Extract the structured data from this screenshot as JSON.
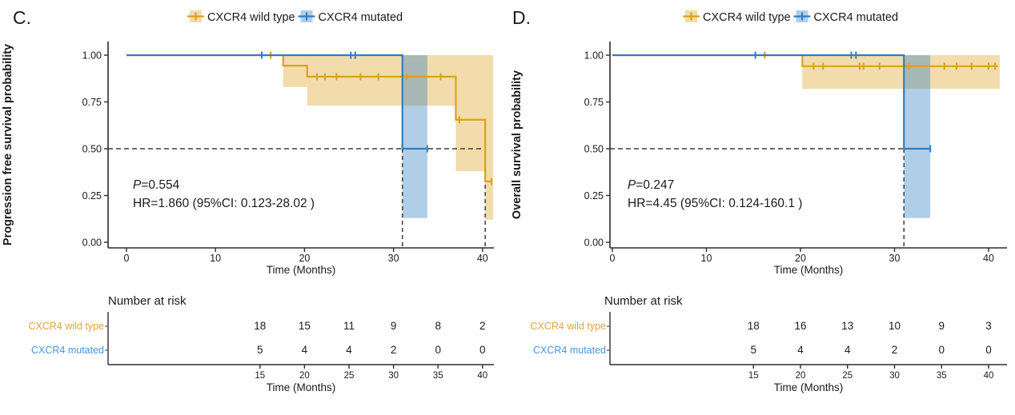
{
  "figure": {
    "background": "#ffffff",
    "text_color": "#1b1b1b"
  },
  "chart_data": [
    {
      "type": "line",
      "subtype": "kaplan-meier-step",
      "panel_label": "C.",
      "ylabel": "Progression free survival probability",
      "xlabel": "Time (Months)",
      "xticks": [
        0,
        10,
        20,
        30,
        40
      ],
      "ytick_values": [
        0,
        0.25,
        0.5,
        0.75,
        1
      ],
      "ytick_labels": [
        "0.00",
        "0.25",
        "0.50",
        "0.75",
        "1.00"
      ],
      "xlim": [
        0,
        41.5
      ],
      "ylim": [
        0,
        1
      ],
      "legend": [
        {
          "label": "CXCR4 wild type",
          "color": "#DDA019",
          "band_color": "rgba(224,164,38,0.38)"
        },
        {
          "label": "CXCR4 mutated",
          "color": "#2F7EC3",
          "band_color": "rgba(47,126,195,0.38)"
        }
      ],
      "annotation": {
        "p_label": "P",
        "p_value": "=0.554",
        "hr": "HR=1.860 (95%CI: 0.123-28.02 )"
      },
      "median_guides": {
        "h_y": 0.5,
        "h_x_end": 40.3,
        "v_x": [
          31,
          40.3
        ]
      },
      "series": [
        {
          "name": "CXCR4 wild type",
          "color": "#DDA019",
          "band_color": "rgba(224,164,38,0.38)",
          "steps": [
            [
              0,
              1
            ],
            [
              17.6,
              1
            ],
            [
              17.6,
              0.944
            ],
            [
              20.3,
              0.944
            ],
            [
              20.3,
              0.885
            ],
            [
              37,
              0.885
            ],
            [
              37,
              0.655
            ],
            [
              40.3,
              0.655
            ],
            [
              40.3,
              0.325
            ],
            [
              41,
              0.325
            ]
          ],
          "censors": [
            [
              16.2,
              1
            ],
            [
              21.4,
              0.885
            ],
            [
              22.3,
              0.885
            ],
            [
              23.6,
              0.885
            ],
            [
              26.3,
              0.885
            ],
            [
              28.3,
              0.885
            ],
            [
              31.5,
              0.885
            ],
            [
              35.3,
              0.885
            ],
            [
              37.4,
              0.655
            ],
            [
              41,
              0.325
            ]
          ],
          "ci": {
            "upper": 1.0,
            "lower": [
              [
                17.6,
                0.83
              ],
              [
                20.3,
                0.73
              ],
              [
                37,
                0.38
              ],
              [
                40.3,
                0.12
              ]
            ],
            "x_end": 41.2
          }
        },
        {
          "name": "CXCR4 mutated",
          "color": "#2F7EC3",
          "band_color": "rgba(47,126,195,0.38)",
          "steps": [
            [
              0,
              1
            ],
            [
              31,
              1
            ],
            [
              31,
              0.5
            ],
            [
              33.8,
              0.5
            ]
          ],
          "censors": [
            [
              15.2,
              1
            ],
            [
              25.2,
              1
            ],
            [
              25.7,
              1
            ],
            [
              33.8,
              0.5
            ]
          ],
          "ci": {
            "upper": 1.0,
            "lower": [
              [
                31,
                0.13
              ]
            ],
            "x_end": 33.8
          }
        }
      ],
      "risk_table": {
        "title": "Number at risk",
        "xlabel": "Time (Months)",
        "times": [
          15,
          20,
          25,
          30,
          35,
          40
        ],
        "rows": [
          {
            "name": "CXCR4 wild type",
            "color": "#E2A33D",
            "values": [
              18,
              15,
              11,
              9,
              8,
              2
            ]
          },
          {
            "name": "CXCR4 mutated",
            "color": "#4B94DC",
            "values": [
              5,
              4,
              4,
              2,
              0,
              0
            ]
          }
        ]
      }
    },
    {
      "type": "line",
      "subtype": "kaplan-meier-step",
      "panel_label": "D.",
      "ylabel": "Overall survival probability",
      "xlabel": "Time (Months)",
      "xticks": [
        0,
        10,
        20,
        30,
        40
      ],
      "ytick_values": [
        0,
        0.25,
        0.5,
        0.75,
        1
      ],
      "ytick_labels": [
        "0.00",
        "0.25",
        "0.50",
        "0.75",
        "1.00"
      ],
      "xlim": [
        0,
        41.5
      ],
      "ylim": [
        0,
        1
      ],
      "legend": [
        {
          "label": "CXCR4 wild type",
          "color": "#DDA019",
          "band_color": "rgba(224,164,38,0.38)"
        },
        {
          "label": "CXCR4 mutated",
          "color": "#2F7EC3",
          "band_color": "rgba(47,126,195,0.38)"
        }
      ],
      "annotation": {
        "p_label": "P",
        "p_value": "=0.247",
        "hr": "HR=4.45 (95%CI: 0.124-160.1 )"
      },
      "median_guides": {
        "h_y": 0.5,
        "h_x_end": 31,
        "v_x": [
          31
        ]
      },
      "series": [
        {
          "name": "CXCR4 wild type",
          "color": "#DDA019",
          "band_color": "rgba(224,164,38,0.38)",
          "steps": [
            [
              0,
              1
            ],
            [
              20.2,
              1
            ],
            [
              20.2,
              0.941
            ],
            [
              41,
              0.941
            ]
          ],
          "censors": [
            [
              16.2,
              1
            ],
            [
              21.4,
              0.941
            ],
            [
              22.4,
              0.941
            ],
            [
              26.3,
              0.941
            ],
            [
              26.7,
              0.941
            ],
            [
              28.4,
              0.941
            ],
            [
              31.5,
              0.941
            ],
            [
              35.3,
              0.941
            ],
            [
              36.6,
              0.941
            ],
            [
              38.2,
              0.941
            ],
            [
              40,
              0.941
            ],
            [
              40.7,
              0.941
            ]
          ],
          "ci": {
            "upper": 1.0,
            "lower": [
              [
                20.2,
                0.82
              ]
            ],
            "x_end": 41.2
          }
        },
        {
          "name": "CXCR4 mutated",
          "color": "#2F7EC3",
          "band_color": "rgba(47,126,195,0.38)",
          "steps": [
            [
              0,
              1
            ],
            [
              31,
              1
            ],
            [
              31,
              0.5
            ],
            [
              33.8,
              0.5
            ]
          ],
          "censors": [
            [
              15.2,
              1
            ],
            [
              25.4,
              1
            ],
            [
              25.9,
              1
            ],
            [
              33.8,
              0.5
            ]
          ],
          "ci": {
            "upper": 1.0,
            "lower": [
              [
                31,
                0.13
              ]
            ],
            "x_end": 33.8
          }
        }
      ],
      "risk_table": {
        "title": "Number at risk",
        "xlabel": "Time (Months)",
        "times": [
          15,
          20,
          25,
          30,
          35,
          40
        ],
        "rows": [
          {
            "name": "CXCR4 wild type",
            "color": "#E2A33D",
            "values": [
              18,
              16,
              13,
              10,
              9,
              3
            ]
          },
          {
            "name": "CXCR4 mutated",
            "color": "#4B94DC",
            "values": [
              5,
              4,
              4,
              2,
              0,
              0
            ]
          }
        ]
      }
    }
  ]
}
